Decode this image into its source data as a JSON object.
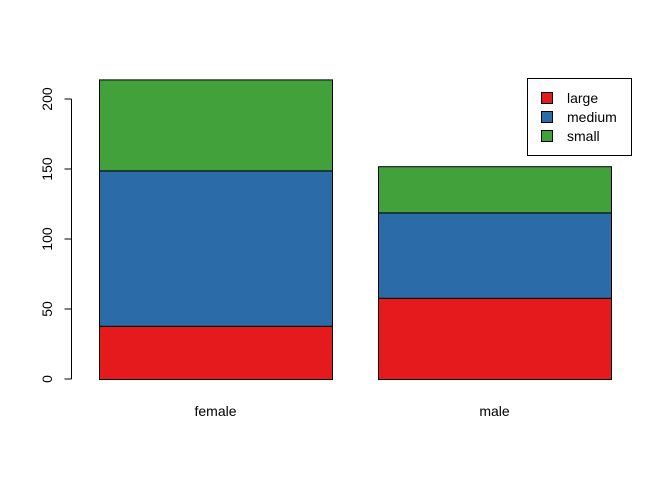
{
  "chart_data": {
    "type": "bar",
    "stacked": true,
    "categories": [
      "female",
      "male"
    ],
    "series": [
      {
        "name": "large",
        "values": [
          38,
          58
        ],
        "color": "#E41A1C"
      },
      {
        "name": "medium",
        "values": [
          111,
          61
        ],
        "color": "#2B6BA8"
      },
      {
        "name": "small",
        "values": [
          65,
          33
        ],
        "color": "#42A13A"
      }
    ],
    "yticks": [
      0,
      50,
      100,
      150,
      200
    ],
    "ylim": [
      0,
      214
    ],
    "title": "",
    "xlabel": "",
    "ylabel": "",
    "legend": {
      "position": "top-right",
      "entries": [
        "large",
        "medium",
        "small"
      ]
    },
    "grid": false
  }
}
